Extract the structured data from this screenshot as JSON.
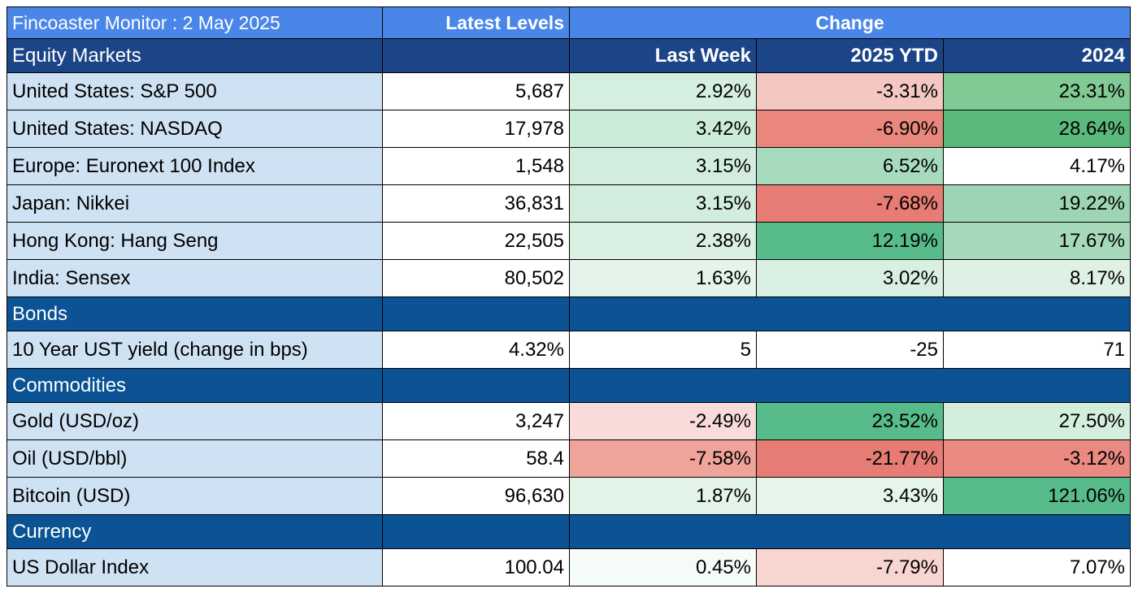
{
  "header": {
    "title": "Fincoaster Monitor : 2 May 2025",
    "latest_levels": "Latest Levels",
    "change": "Change"
  },
  "sections": [
    {
      "name": "Equity Markets",
      "columns": [
        "Last Week",
        "2025 YTD",
        "2024"
      ],
      "rows": [
        {
          "label": "United States: S&P 500",
          "level": "5,687",
          "week": "2.92%",
          "ytd": "-3.31%",
          "y2024": "23.31%",
          "colors": [
            "#d4efdf",
            "#f4c7c3",
            "#81c995"
          ]
        },
        {
          "label": "United States: NASDAQ",
          "level": "17,978",
          "week": "3.42%",
          "ytd": "-6.90%",
          "y2024": "28.64%",
          "colors": [
            "#cdebd9",
            "#e9877c",
            "#5bb97c"
          ]
        },
        {
          "label": "Europe: Euronext 100 Index",
          "level": "1,548",
          "week": "3.15%",
          "ytd": "6.52%",
          "y2024": "4.17%",
          "colors": [
            "#d2eddd",
            "#a8dbbd",
            "#ffffff"
          ]
        },
        {
          "label": "Japan: Nikkei",
          "level": "36,831",
          "week": "3.15%",
          "ytd": "-7.68%",
          "y2024": "19.22%",
          "colors": [
            "#d2eddd",
            "#e67c73",
            "#9dd5b4"
          ]
        },
        {
          "label": "Hong Kong: Hang Seng",
          "level": "22,505",
          "week": "2.38%",
          "ytd": "12.19%",
          "y2024": "17.67%",
          "colors": [
            "#daf0e3",
            "#57bb8a",
            "#a5d9ba"
          ]
        },
        {
          "label": "India: Sensex",
          "level": "80,502",
          "week": "1.63%",
          "ytd": "3.02%",
          "y2024": "8.17%",
          "colors": [
            "#e4f4ea",
            "#d9efe2",
            "#ddf1e5"
          ]
        }
      ]
    },
    {
      "name": "Bonds",
      "rows": [
        {
          "label": "10 Year UST yield (change in bps)",
          "level": "4.32%",
          "week": "5",
          "ytd": "-25",
          "y2024": "71",
          "colors": [
            "#ffffff",
            "#ffffff",
            "#ffffff"
          ]
        }
      ]
    },
    {
      "name": "Commodities",
      "rows": [
        {
          "label": "Gold (USD/oz)",
          "level": "3,247",
          "week": "-2.49%",
          "ytd": "23.52%",
          "y2024": "27.50%",
          "colors": [
            "#f9dcd9",
            "#57bb8a",
            "#d4eedd"
          ]
        },
        {
          "label": "Oil (USD/bbl)",
          "level": "58.4",
          "week": "-7.58%",
          "ytd": "-21.77%",
          "y2024": "-3.12%",
          "colors": [
            "#eea39b",
            "#e67c73",
            "#ea8a80"
          ]
        },
        {
          "label": "Bitcoin (USD)",
          "level": "96,630",
          "week": "1.87%",
          "ytd": "3.43%",
          "y2024": "121.06%",
          "colors": [
            "#e3f4e9",
            "#e6f5ec",
            "#57bb8a"
          ]
        }
      ]
    },
    {
      "name": "Currency",
      "rows": [
        {
          "label": "US Dollar Index",
          "level": "100.04",
          "week": "0.45%",
          "ytd": "-7.79%",
          "y2024": "7.07%",
          "colors": [
            "#f5fbf7",
            "#f8d5d1",
            "#ffffff"
          ]
        }
      ]
    }
  ]
}
